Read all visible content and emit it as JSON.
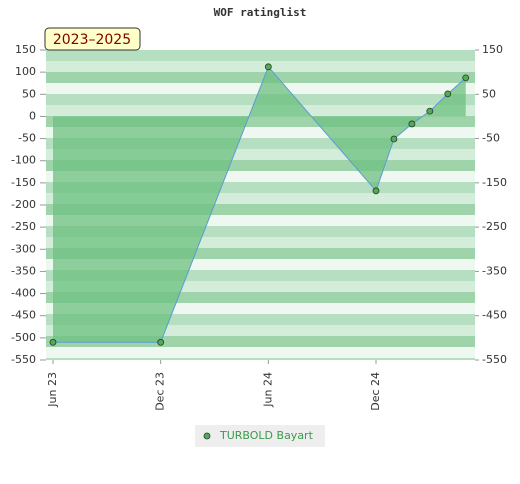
{
  "chart_data": {
    "type": "area",
    "title": "WOF ratinglist",
    "annotation": "2023–2025",
    "x": [
      "2023-06",
      "2023-12",
      "2024-06",
      "2024-12",
      "2025-01",
      "2025-02",
      "2025-03",
      "2025-04",
      "2025-05"
    ],
    "xticks": [
      {
        "value": "2023-06",
        "label": "Jun 23"
      },
      {
        "value": "2023-12",
        "label": "Dec 23"
      },
      {
        "value": "2024-06",
        "label": "Jun 24"
      },
      {
        "value": "2024-12",
        "label": "Dec 24"
      }
    ],
    "series": [
      {
        "name": "TURBOLD Bayart",
        "color": "#5b9bd5",
        "fill": "#6cc080",
        "marker_color": "#4caf50",
        "values": [
          -510,
          -510,
          112,
          -168,
          -51,
          -17,
          12,
          51,
          87
        ]
      }
    ],
    "ylim": [
      -550,
      150
    ],
    "yticks": [
      -550,
      -500,
      -450,
      -400,
      -350,
      -300,
      -250,
      -200,
      -150,
      -100,
      -50,
      0,
      50,
      100,
      150
    ],
    "y2lim": [
      -550,
      150
    ],
    "y2ticks": [
      -550,
      -450,
      -350,
      -250,
      -150,
      -50,
      50,
      150
    ],
    "legend": "bottom"
  }
}
